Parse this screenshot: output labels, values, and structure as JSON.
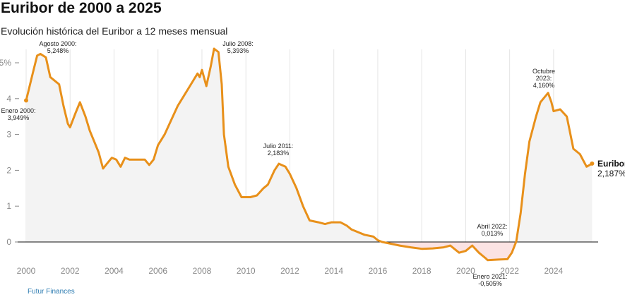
{
  "title": "Euribor de 2000 a 2025",
  "subtitle": "Evolución histórica del Euribor a 12 meses mensual",
  "source": "Futur Finances",
  "colors": {
    "line": "#e8901a",
    "area": "#f3f3f3",
    "negative_area": "#fbe3e3",
    "zero_line": "#111111"
  },
  "chart_data": {
    "type": "line",
    "title": "Euribor de 2000 a 2025",
    "xlabel": "",
    "ylabel": "",
    "xlim": [
      2000,
      2025.8
    ],
    "ylim": [
      -0.6,
      5.4
    ],
    "x_ticks": [
      "2000",
      "2002",
      "2004",
      "2006",
      "2008",
      "2010",
      "2012",
      "2014",
      "2016",
      "2018",
      "2020",
      "2022",
      "2024"
    ],
    "y_ticks": [
      "0",
      "1",
      "2",
      "3",
      "4",
      "5%"
    ],
    "grid": "vertical",
    "series": [
      {
        "name": "Euribor",
        "end_label": "2,187%",
        "x": [
          2000.0,
          2000.3,
          2000.5,
          2000.65,
          2000.9,
          2001.1,
          2001.3,
          2001.5,
          2001.7,
          2001.9,
          2002.0,
          2002.25,
          2002.45,
          2002.7,
          2002.9,
          2003.1,
          2003.3,
          2003.5,
          2003.7,
          2003.9,
          2004.1,
          2004.3,
          2004.5,
          2004.7,
          2005.0,
          2005.4,
          2005.6,
          2005.8,
          2006.0,
          2006.3,
          2006.6,
          2006.9,
          2007.2,
          2007.5,
          2007.8,
          2007.9,
          2008.0,
          2008.2,
          2008.4,
          2008.55,
          2008.75,
          2008.9,
          2009.0,
          2009.2,
          2009.5,
          2009.8,
          2010.2,
          2010.5,
          2010.8,
          2011.0,
          2011.3,
          2011.5,
          2011.8,
          2012.0,
          2012.3,
          2012.6,
          2012.9,
          2013.3,
          2013.6,
          2013.9,
          2014.3,
          2014.6,
          2014.8,
          2015.0,
          2015.4,
          2015.8,
          2016.0,
          2016.2,
          2016.6,
          2017.0,
          2017.5,
          2018.0,
          2018.5,
          2019.0,
          2019.3,
          2019.7,
          2020.0,
          2020.3,
          2020.6,
          2020.9,
          2021.0,
          2021.5,
          2021.9,
          2022.1,
          2022.3,
          2022.5,
          2022.7,
          2022.9,
          2023.2,
          2023.4,
          2023.75,
          2023.9,
          2024.0,
          2024.3,
          2024.6,
          2024.9,
          2025.2,
          2025.5,
          2025.75
        ],
        "y": [
          3.949,
          4.7,
          5.2,
          5.248,
          5.15,
          4.6,
          4.5,
          4.4,
          3.8,
          3.3,
          3.2,
          3.6,
          3.9,
          3.5,
          3.1,
          2.8,
          2.5,
          2.05,
          2.2,
          2.35,
          2.3,
          2.1,
          2.35,
          2.3,
          2.3,
          2.3,
          2.15,
          2.3,
          2.7,
          3.0,
          3.4,
          3.8,
          4.1,
          4.4,
          4.7,
          4.6,
          4.8,
          4.35,
          4.9,
          5.393,
          5.3,
          4.4,
          3.0,
          2.1,
          1.6,
          1.25,
          1.25,
          1.3,
          1.5,
          1.6,
          2.0,
          2.183,
          2.1,
          1.9,
          1.5,
          1.0,
          0.6,
          0.55,
          0.5,
          0.55,
          0.55,
          0.45,
          0.35,
          0.3,
          0.2,
          0.15,
          0.05,
          0.0,
          -0.05,
          -0.1,
          -0.15,
          -0.19,
          -0.18,
          -0.15,
          -0.1,
          -0.3,
          -0.25,
          -0.1,
          -0.3,
          -0.45,
          -0.505,
          -0.49,
          -0.48,
          -0.3,
          0.013,
          0.8,
          1.9,
          2.8,
          3.5,
          3.9,
          4.16,
          3.9,
          3.65,
          3.7,
          3.5,
          2.6,
          2.45,
          2.1,
          2.187
        ]
      }
    ],
    "annotations": [
      {
        "label": "Enero 2000:",
        "value": "3,949%",
        "x": 2000.0,
        "y": 3.949
      },
      {
        "label": "Agosto 2000:",
        "value": "5,248%",
        "x": 2000.65,
        "y": 5.248
      },
      {
        "label": "Julio 2008:",
        "value": "5,393%",
        "x": 2008.55,
        "y": 5.393
      },
      {
        "label": "Julio 2011:",
        "value": "2,183%",
        "x": 2011.5,
        "y": 2.183
      },
      {
        "label": "Abril 2022:",
        "value": "0,013%",
        "x": 2022.3,
        "y": 0.013
      },
      {
        "label": "Enero 2021:",
        "value": "-0,505%",
        "x": 2021.0,
        "y": -0.505
      },
      {
        "label": "Octubre",
        "label2": "2023:",
        "value": "4,160%",
        "x": 2023.75,
        "y": 4.16
      }
    ]
  }
}
